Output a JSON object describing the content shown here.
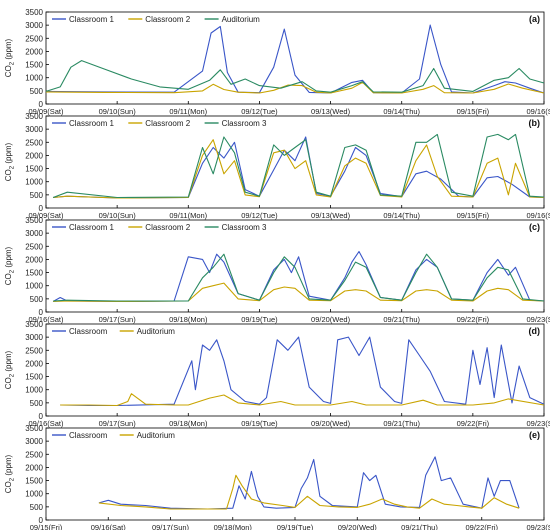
{
  "colors": {
    "blue": "#3a56c8",
    "gold": "#c9a400",
    "green": "#2a8a62"
  },
  "chart_data": [
    {
      "type": "line",
      "panel_label": "(a)",
      "ylabel_main": "CO",
      "ylabel_sub": "2",
      "ylabel_unit": " (ppm)",
      "ylim": [
        0,
        3500
      ],
      "yticks": [
        "0",
        "500",
        "1000",
        "1500",
        "2000",
        "2500",
        "3000",
        "3500"
      ],
      "xlim": [
        0,
        7
      ],
      "x_tick_labels": [
        "09/09(Sat)",
        "09/10(Sun)",
        "09/11(Mon)",
        "09/12(Tue)",
        "09/13(Wed)",
        "09/14(Thu)",
        "09/15(Fri)",
        "09/16(Sat)"
      ],
      "legend": [
        "Classroom 1",
        "Classroom 2",
        "Auditorium"
      ],
      "series": [
        {
          "name": "Classroom 1",
          "color": "blue",
          "x": [
            0,
            0.8,
            1.8,
            2.2,
            2.32,
            2.45,
            2.55,
            2.7,
            3.0,
            3.2,
            3.35,
            3.5,
            3.7,
            4.0,
            4.3,
            4.45,
            4.6,
            5.0,
            5.25,
            5.4,
            5.55,
            5.7,
            6.0,
            6.3,
            6.45,
            6.6,
            6.8,
            7.0
          ],
          "y": [
            480,
            460,
            450,
            1250,
            2700,
            2950,
            1200,
            450,
            430,
            1400,
            2850,
            1100,
            440,
            420,
            820,
            900,
            430,
            420,
            950,
            3000,
            1500,
            460,
            420,
            700,
            850,
            800,
            600,
            420
          ]
        },
        {
          "name": "Classroom 2",
          "color": "gold",
          "x": [
            0,
            0.8,
            1.8,
            2.2,
            2.35,
            2.5,
            2.7,
            3.0,
            3.2,
            3.4,
            3.6,
            3.8,
            4.0,
            4.3,
            4.45,
            4.6,
            5.0,
            5.3,
            5.45,
            5.6,
            6.0,
            6.3,
            6.5,
            6.7,
            7.0
          ],
          "y": [
            460,
            440,
            430,
            500,
            750,
            550,
            450,
            420,
            520,
            720,
            700,
            450,
            420,
            600,
            820,
            430,
            420,
            560,
            700,
            430,
            420,
            560,
            760,
            600,
            420
          ]
        },
        {
          "name": "Auditorium",
          "color": "green",
          "x": [
            0,
            0.2,
            0.35,
            0.5,
            0.8,
            1.2,
            1.6,
            2.0,
            2.3,
            2.45,
            2.6,
            2.8,
            3.0,
            3.3,
            3.6,
            3.8,
            4.0,
            4.3,
            4.45,
            4.6,
            5.0,
            5.3,
            5.45,
            5.6,
            6.0,
            6.3,
            6.5,
            6.65,
            6.8,
            7.0
          ],
          "y": [
            480,
            650,
            1400,
            1650,
            1350,
            950,
            650,
            560,
            900,
            1300,
            750,
            950,
            700,
            600,
            850,
            500,
            450,
            700,
            850,
            460,
            450,
            700,
            1350,
            600,
            480,
            900,
            1000,
            1350,
            950,
            800
          ]
        }
      ]
    },
    {
      "type": "line",
      "panel_label": "(b)",
      "ylabel_main": "CO",
      "ylabel_sub": "2",
      "ylabel_unit": " (ppm)",
      "ylim": [
        0,
        3500
      ],
      "yticks": [
        "0",
        "500",
        "1000",
        "1500",
        "2000",
        "2500",
        "3000",
        "3500"
      ],
      "xlim": [
        0,
        7
      ],
      "x_tick_labels": [
        "09/09(Sat)",
        "09/10(Sun)",
        "09/11(Mon)",
        "09/12(Tue)",
        "09/13(Wed)",
        "09/14(Thu)",
        "09/15(Fri)",
        "09/16(Sat)"
      ],
      "legend": [
        "Classroom 1",
        "Classroom 2",
        "Classroom 3"
      ],
      "series": [
        {
          "name": "Classroom 1",
          "color": "blue",
          "x": [
            0.1,
            0.3,
            1.0,
            2.0,
            2.2,
            2.35,
            2.5,
            2.65,
            2.8,
            3.0,
            3.2,
            3.35,
            3.5,
            3.65,
            3.8,
            4.0,
            4.2,
            4.35,
            4.5,
            4.7,
            5.0,
            5.2,
            5.35,
            5.55,
            5.8,
            6.0,
            6.2,
            6.35,
            6.55,
            6.8,
            7.0
          ],
          "y": [
            400,
            450,
            380,
            400,
            1700,
            2300,
            1900,
            2500,
            700,
            450,
            1450,
            2200,
            1800,
            2700,
            550,
            450,
            1400,
            2300,
            2000,
            550,
            430,
            1300,
            1400,
            1100,
            450,
            420,
            1150,
            1200,
            900,
            420,
            400
          ]
        },
        {
          "name": "Classroom 2",
          "color": "gold",
          "x": [
            0.1,
            0.3,
            1.0,
            2.0,
            2.2,
            2.35,
            2.5,
            2.65,
            2.8,
            3.0,
            3.2,
            3.35,
            3.5,
            3.65,
            3.8,
            4.0,
            4.2,
            4.35,
            4.5,
            4.7,
            5.0,
            5.2,
            5.35,
            5.5,
            5.7,
            6.0,
            6.2,
            6.35,
            6.5,
            6.6,
            6.8,
            7.0
          ],
          "y": [
            400,
            450,
            380,
            400,
            2000,
            2600,
            1300,
            1800,
            500,
            430,
            2100,
            2200,
            1500,
            1800,
            500,
            420,
            1600,
            1900,
            1700,
            480,
            420,
            1800,
            2400,
            1200,
            450,
            420,
            1700,
            1900,
            500,
            1700,
            420,
            400
          ]
        },
        {
          "name": "Classroom 3",
          "color": "green",
          "x": [
            0.1,
            0.3,
            1.0,
            2.0,
            2.2,
            2.35,
            2.5,
            2.65,
            2.8,
            3.0,
            3.2,
            3.35,
            3.5,
            3.65,
            3.8,
            4.0,
            4.2,
            4.35,
            4.5,
            4.7,
            5.0,
            5.2,
            5.35,
            5.5,
            5.7,
            6.0,
            6.2,
            6.35,
            6.5,
            6.6,
            6.8,
            7.0
          ],
          "y": [
            400,
            600,
            400,
            420,
            2300,
            1300,
            2700,
            2100,
            600,
            450,
            2400,
            2000,
            2300,
            2600,
            600,
            450,
            2300,
            2400,
            2200,
            500,
            450,
            2500,
            2500,
            2800,
            600,
            450,
            2700,
            2800,
            2600,
            2800,
            450,
            420
          ]
        }
      ]
    },
    {
      "type": "line",
      "panel_label": "(c)",
      "ylabel_main": "CO",
      "ylabel_sub": "2",
      "ylabel_unit": " (ppm)",
      "ylim": [
        0,
        3500
      ],
      "yticks": [
        "0",
        "500",
        "1000",
        "1500",
        "2000",
        "2500",
        "3000",
        "3500"
      ],
      "xlim": [
        0,
        7
      ],
      "x_tick_labels": [
        "09/16(Sat)",
        "09/17(Sun)",
        "09/18(Mon)",
        "09/19(Tue)",
        "09/20(Wed)",
        "09/21(Thu)",
        "09/22(Fri)",
        "09/23(Sat)"
      ],
      "legend": [
        "Classroom 1",
        "Classroom 2",
        "Classroom 3"
      ],
      "series": [
        {
          "name": "Classroom 1",
          "color": "blue",
          "x": [
            0.1,
            0.2,
            0.3,
            1.0,
            1.8,
            2.0,
            2.2,
            2.3,
            2.4,
            2.5,
            2.7,
            3.0,
            3.2,
            3.35,
            3.45,
            3.55,
            3.7,
            4.0,
            4.2,
            4.3,
            4.4,
            4.5,
            4.7,
            5.0,
            5.2,
            5.35,
            5.5,
            5.7,
            6.0,
            6.2,
            6.35,
            6.5,
            6.6,
            6.8,
            7.0
          ],
          "y": [
            400,
            550,
            420,
            400,
            420,
            2100,
            2000,
            1500,
            2200,
            1900,
            700,
            450,
            1600,
            2000,
            1500,
            2100,
            600,
            450,
            1300,
            1900,
            2300,
            1800,
            550,
            450,
            1600,
            2000,
            1700,
            500,
            450,
            1500,
            2000,
            1400,
            1700,
            450,
            420
          ]
        },
        {
          "name": "Classroom 2",
          "color": "gold",
          "x": [
            0.1,
            0.3,
            1.0,
            2.0,
            2.2,
            2.35,
            2.5,
            2.7,
            3.0,
            3.2,
            3.35,
            3.5,
            3.7,
            4.0,
            4.2,
            4.35,
            4.5,
            4.7,
            5.0,
            5.2,
            5.35,
            5.5,
            5.7,
            6.0,
            6.2,
            6.35,
            6.5,
            6.7,
            7.0
          ],
          "y": [
            400,
            420,
            400,
            420,
            900,
            1000,
            1100,
            500,
            430,
            850,
            950,
            900,
            450,
            430,
            800,
            850,
            800,
            450,
            430,
            800,
            850,
            800,
            450,
            420,
            800,
            900,
            850,
            450,
            420
          ]
        },
        {
          "name": "Classroom 3",
          "color": "green",
          "x": [
            0.1,
            0.3,
            1.0,
            2.0,
            2.2,
            2.35,
            2.5,
            2.7,
            3.0,
            3.2,
            3.35,
            3.5,
            3.7,
            4.0,
            4.2,
            4.35,
            4.5,
            4.7,
            5.0,
            5.2,
            5.35,
            5.5,
            5.7,
            6.0,
            6.2,
            6.35,
            6.5,
            6.7,
            7.0
          ],
          "y": [
            420,
            450,
            420,
            420,
            1300,
            1700,
            2200,
            700,
            450,
            1500,
            2100,
            1700,
            500,
            450,
            1200,
            1900,
            1700,
            550,
            450,
            1500,
            2200,
            1700,
            500,
            450,
            1300,
            1700,
            1600,
            500,
            420
          ]
        }
      ]
    },
    {
      "type": "line",
      "panel_label": "(d)",
      "ylabel_main": "CO",
      "ylabel_sub": "2",
      "ylabel_unit": " (ppm)",
      "ylim": [
        0,
        3500
      ],
      "yticks": [
        "0",
        "500",
        "1000",
        "1500",
        "2000",
        "2500",
        "3000",
        "3500"
      ],
      "xlim": [
        0,
        7
      ],
      "x_tick_labels": [
        "09/16(Sat)",
        "09/17(Sun)",
        "09/18(Mon)",
        "09/19(Tue)",
        "09/20(Wed)",
        "09/21(Thu)",
        "09/22(Fri)",
        "09/23(Sat)"
      ],
      "legend": [
        "Classroom",
        "Auditorium"
      ],
      "series": [
        {
          "name": "Classroom",
          "color": "blue",
          "x": [
            0.2,
            0.6,
            1.0,
            1.8,
            2.05,
            2.1,
            2.2,
            2.3,
            2.4,
            2.5,
            2.6,
            2.8,
            3.0,
            3.1,
            3.25,
            3.4,
            3.55,
            3.7,
            3.9,
            4.0,
            4.1,
            4.25,
            4.4,
            4.55,
            4.7,
            4.9,
            5.0,
            5.1,
            5.25,
            5.4,
            5.6,
            5.9,
            6.0,
            6.1,
            6.2,
            6.3,
            6.4,
            6.55,
            6.65,
            6.8,
            7.0
          ],
          "y": [
            420,
            400,
            400,
            450,
            2100,
            1000,
            2700,
            2500,
            2900,
            2100,
            1000,
            550,
            450,
            700,
            2900,
            2500,
            3000,
            1100,
            550,
            480,
            2900,
            3000,
            2300,
            3000,
            1100,
            550,
            480,
            2900,
            2300,
            1700,
            550,
            450,
            2500,
            1200,
            2600,
            700,
            2700,
            500,
            1900,
            700,
            450
          ]
        },
        {
          "name": "Auditorium",
          "color": "gold",
          "x": [
            0.2,
            0.6,
            1.0,
            1.15,
            1.2,
            1.4,
            1.8,
            2.0,
            2.3,
            2.5,
            2.7,
            3.0,
            3.3,
            3.5,
            4.0,
            4.3,
            4.5,
            5.0,
            5.3,
            5.5,
            6.0,
            6.3,
            6.5,
            7.0
          ],
          "y": [
            420,
            420,
            400,
            550,
            850,
            450,
            420,
            420,
            680,
            800,
            500,
            420,
            550,
            420,
            420,
            550,
            420,
            420,
            600,
            420,
            420,
            500,
            650,
            420
          ]
        }
      ]
    },
    {
      "type": "line",
      "panel_label": "(e)",
      "ylabel_main": "CO",
      "ylabel_sub": "2",
      "ylabel_unit": " (ppm)",
      "ylim": [
        0,
        3500
      ],
      "yticks": [
        "0",
        "500",
        "1000",
        "1500",
        "2000",
        "2500",
        "3000",
        "3500"
      ],
      "xlim": [
        0,
        8
      ],
      "x_tick_labels": [
        "09/15(Fri)",
        "09/16(Sat)",
        "09/17(Sun)",
        "09/18(Mon)",
        "09/19(Tue)",
        "09/20(Wed)",
        "09/21(Thu)",
        "09/22(Fri)",
        "09/23(Sat)"
      ],
      "legend": [
        "Classroom",
        "Auditorium"
      ],
      "series": [
        {
          "name": "Classroom",
          "color": "blue",
          "x": [
            0.85,
            1.0,
            1.2,
            1.6,
            2.0,
            2.6,
            3.0,
            3.1,
            3.2,
            3.3,
            3.4,
            3.5,
            3.7,
            4.0,
            4.1,
            4.2,
            4.3,
            4.4,
            4.6,
            5.0,
            5.1,
            5.2,
            5.3,
            5.45,
            5.7,
            6.0,
            6.1,
            6.25,
            6.35,
            6.5,
            6.7,
            7.0,
            7.1,
            7.2,
            7.3,
            7.45,
            7.6
          ],
          "y": [
            650,
            750,
            600,
            550,
            450,
            420,
            450,
            1300,
            800,
            1850,
            900,
            500,
            450,
            480,
            1200,
            1600,
            2300,
            900,
            550,
            500,
            1800,
            1500,
            1700,
            600,
            500,
            480,
            1700,
            2400,
            1500,
            1600,
            600,
            450,
            1600,
            900,
            1500,
            1500,
            450
          ]
        },
        {
          "name": "Auditorium",
          "color": "gold",
          "x": [
            0.85,
            1.2,
            1.6,
            2.0,
            2.6,
            2.9,
            3.0,
            3.05,
            3.15,
            3.3,
            3.5,
            3.8,
            4.0,
            4.2,
            4.4,
            4.7,
            5.0,
            5.2,
            5.4,
            5.6,
            5.8,
            6.0,
            6.2,
            6.4,
            6.6,
            6.8,
            7.0,
            7.2,
            7.4,
            7.6
          ],
          "y": [
            650,
            550,
            500,
            420,
            420,
            420,
            1200,
            1700,
            1300,
            800,
            650,
            550,
            480,
            900,
            550,
            500,
            480,
            600,
            800,
            600,
            500,
            450,
            800,
            600,
            550,
            500,
            450,
            850,
            600,
            450
          ]
        }
      ]
    }
  ]
}
